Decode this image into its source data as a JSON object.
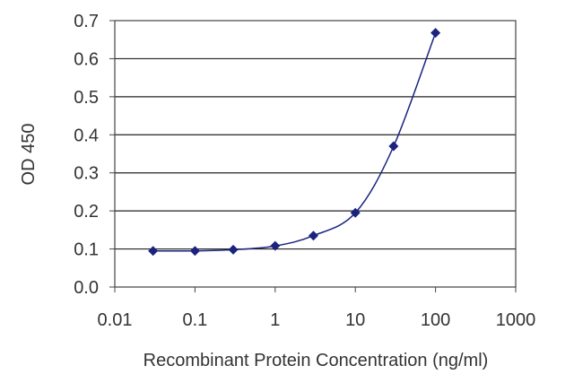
{
  "chart_data": {
    "type": "line",
    "title": "",
    "xlabel": "Recombinant Protein Concentration (ng/ml)",
    "ylabel": "OD 450",
    "x_scale": "log",
    "xlim": [
      0.01,
      1000
    ],
    "ylim": [
      0.0,
      0.7
    ],
    "x_ticks": [
      0.01,
      0.1,
      1,
      10,
      100,
      1000
    ],
    "x_tick_labels": [
      "0.01",
      "0.1",
      "1",
      "10",
      "100",
      "1000"
    ],
    "y_ticks": [
      0.0,
      0.1,
      0.2,
      0.3,
      0.4,
      0.5,
      0.6,
      0.7
    ],
    "y_tick_labels": [
      "0.0",
      "0.1",
      "0.2",
      "0.3",
      "0.4",
      "0.5",
      "0.6",
      "0.7"
    ],
    "grid": "horizontal",
    "legend": "none",
    "series": [
      {
        "x": [
          0.03,
          0.1,
          0.3,
          1,
          3,
          10,
          30,
          100
        ],
        "y": [
          0.095,
          0.095,
          0.098,
          0.108,
          0.135,
          0.195,
          0.37,
          0.668
        ],
        "color": "#1a237e"
      }
    ]
  }
}
